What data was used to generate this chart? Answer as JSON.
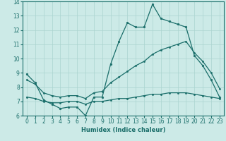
{
  "xlabel": "Humidex (Indice chaleur)",
  "ylabel": "",
  "xlim": [
    -0.5,
    23.5
  ],
  "ylim": [
    6,
    14
  ],
  "xticks": [
    0,
    1,
    2,
    3,
    4,
    5,
    6,
    7,
    8,
    9,
    10,
    11,
    12,
    13,
    14,
    15,
    16,
    17,
    18,
    19,
    20,
    21,
    22,
    23
  ],
  "yticks": [
    6,
    7,
    8,
    9,
    10,
    11,
    12,
    13,
    14
  ],
  "bg_color": "#cceae7",
  "grid_color": "#aad4d0",
  "line_color": "#1a6e6a",
  "line1_x": [
    0,
    1,
    2,
    3,
    4,
    5,
    6,
    7,
    8,
    9,
    10,
    11,
    12,
    13,
    14,
    15,
    16,
    17,
    18,
    19,
    20,
    21,
    22,
    23
  ],
  "line1_y": [
    8.9,
    8.3,
    7.1,
    6.8,
    6.5,
    6.6,
    6.6,
    6.0,
    7.3,
    7.3,
    9.6,
    11.2,
    12.5,
    12.2,
    12.2,
    13.8,
    12.8,
    12.6,
    12.4,
    12.2,
    10.2,
    9.5,
    8.5,
    7.3
  ],
  "line2_x": [
    0,
    1,
    2,
    3,
    4,
    5,
    6,
    7,
    8,
    9,
    10,
    11,
    12,
    13,
    14,
    15,
    16,
    17,
    18,
    19,
    20,
    21,
    22,
    23
  ],
  "line2_y": [
    8.5,
    8.2,
    7.6,
    7.4,
    7.3,
    7.4,
    7.4,
    7.2,
    7.6,
    7.7,
    8.3,
    8.7,
    9.1,
    9.5,
    9.8,
    10.3,
    10.6,
    10.8,
    11.0,
    11.2,
    10.4,
    9.8,
    9.0,
    7.9
  ],
  "line3_x": [
    0,
    1,
    2,
    3,
    4,
    5,
    6,
    7,
    8,
    9,
    10,
    11,
    12,
    13,
    14,
    15,
    16,
    17,
    18,
    19,
    20,
    21,
    22,
    23
  ],
  "line3_y": [
    7.3,
    7.2,
    7.0,
    6.9,
    6.9,
    7.0,
    7.0,
    6.8,
    7.0,
    7.0,
    7.1,
    7.2,
    7.2,
    7.3,
    7.4,
    7.5,
    7.5,
    7.6,
    7.6,
    7.6,
    7.5,
    7.4,
    7.3,
    7.2
  ]
}
